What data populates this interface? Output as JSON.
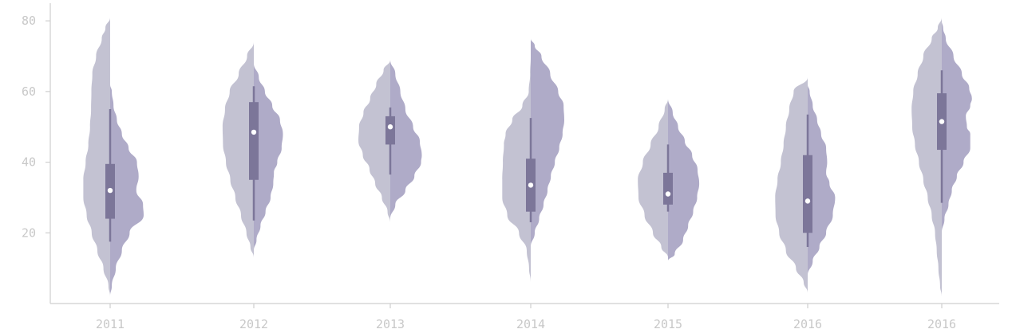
{
  "chart_data": {
    "type": "violin",
    "title": "",
    "xlabel": "",
    "ylabel": "",
    "ylim": [
      0,
      85
    ],
    "yticks": [
      20,
      40,
      60,
      80
    ],
    "grid": false,
    "categories": [
      "2011",
      "2012",
      "2013",
      "2014",
      "2015",
      "2016",
      "2016"
    ],
    "colors": {
      "left_half": "#c3c2d2",
      "right_half": "#afabc8",
      "box": "#7c7699",
      "median_dot": "#ffffff",
      "axis": "#cfcfcf",
      "tick_text": "#c8c8c8"
    },
    "violins": [
      {
        "category": "2011",
        "median": 32,
        "q1": 24,
        "q3": 39.5,
        "whisker_low": 17.5,
        "whisker_high": 55,
        "left_density": [
          [
            2,
            0
          ],
          [
            5,
            0.05
          ],
          [
            10,
            0.2
          ],
          [
            15,
            0.38
          ],
          [
            20,
            0.55
          ],
          [
            25,
            0.7
          ],
          [
            30,
            0.8
          ],
          [
            35,
            0.8
          ],
          [
            40,
            0.73
          ],
          [
            45,
            0.65
          ],
          [
            50,
            0.6
          ],
          [
            55,
            0.57
          ],
          [
            60,
            0.56
          ],
          [
            65,
            0.53
          ],
          [
            70,
            0.42
          ],
          [
            75,
            0.25
          ],
          [
            78,
            0.14
          ],
          [
            81,
            0
          ]
        ],
        "right_density": [
          [
            2,
            0
          ],
          [
            5,
            0.05
          ],
          [
            10,
            0.17
          ],
          [
            15,
            0.35
          ],
          [
            20,
            0.58
          ],
          [
            25,
            1.0
          ],
          [
            28,
            0.98
          ],
          [
            32,
            0.78
          ],
          [
            36,
            0.85
          ],
          [
            40,
            0.8
          ],
          [
            44,
            0.55
          ],
          [
            48,
            0.35
          ],
          [
            52,
            0.2
          ],
          [
            56,
            0.1
          ],
          [
            60,
            0.05
          ],
          [
            62,
            0
          ]
        ]
      },
      {
        "category": "2012",
        "median": 48.5,
        "q1": 35,
        "q3": 57,
        "whisker_low": 23.5,
        "whisker_high": 61.5,
        "left_density": [
          [
            13,
            0
          ],
          [
            16,
            0.1
          ],
          [
            20,
            0.22
          ],
          [
            25,
            0.38
          ],
          [
            30,
            0.55
          ],
          [
            35,
            0.7
          ],
          [
            40,
            0.83
          ],
          [
            45,
            0.92
          ],
          [
            50,
            0.93
          ],
          [
            55,
            0.86
          ],
          [
            60,
            0.72
          ],
          [
            65,
            0.45
          ],
          [
            70,
            0.2
          ],
          [
            74,
            0
          ]
        ],
        "right_density": [
          [
            15,
            0
          ],
          [
            18,
            0.08
          ],
          [
            22,
            0.2
          ],
          [
            26,
            0.35
          ],
          [
            30,
            0.5
          ],
          [
            34,
            0.58
          ],
          [
            37,
            0.6
          ],
          [
            40,
            0.7
          ],
          [
            44,
            0.83
          ],
          [
            48,
            0.87
          ],
          [
            52,
            0.78
          ],
          [
            56,
            0.55
          ],
          [
            60,
            0.33
          ],
          [
            64,
            0.15
          ],
          [
            68,
            0
          ]
        ]
      },
      {
        "category": "2013",
        "median": 50,
        "q1": 45,
        "q3": 53,
        "whisker_low": 36.5,
        "whisker_high": 55.5,
        "left_density": [
          [
            23,
            0
          ],
          [
            26,
            0.08
          ],
          [
            30,
            0.25
          ],
          [
            34,
            0.45
          ],
          [
            38,
            0.62
          ],
          [
            42,
            0.82
          ],
          [
            46,
            0.95
          ],
          [
            50,
            0.93
          ],
          [
            54,
            0.8
          ],
          [
            58,
            0.6
          ],
          [
            62,
            0.42
          ],
          [
            66,
            0.2
          ],
          [
            69,
            0
          ]
        ],
        "right_density": [
          [
            24,
            0
          ],
          [
            28,
            0.15
          ],
          [
            32,
            0.45
          ],
          [
            36,
            0.72
          ],
          [
            40,
            0.92
          ],
          [
            42,
            0.94
          ],
          [
            46,
            0.88
          ],
          [
            50,
            0.68
          ],
          [
            55,
            0.45
          ],
          [
            60,
            0.3
          ],
          [
            65,
            0.15
          ],
          [
            69,
            0
          ]
        ]
      },
      {
        "category": "2014",
        "median": 33.5,
        "q1": 26,
        "q3": 41,
        "whisker_low": 23,
        "whisker_high": 52.5,
        "left_density": [
          [
            6,
            0
          ],
          [
            10,
            0.05
          ],
          [
            15,
            0.12
          ],
          [
            20,
            0.35
          ],
          [
            25,
            0.7
          ],
          [
            30,
            0.85
          ],
          [
            35,
            0.85
          ],
          [
            40,
            0.83
          ],
          [
            45,
            0.8
          ],
          [
            48,
            0.75
          ],
          [
            52,
            0.55
          ],
          [
            56,
            0.25
          ],
          [
            60,
            0.06
          ],
          [
            65,
            0.02
          ],
          [
            70,
            0
          ]
        ],
        "right_density": [
          [
            16,
            0
          ],
          [
            20,
            0.12
          ],
          [
            24,
            0.25
          ],
          [
            28,
            0.38
          ],
          [
            32,
            0.5
          ],
          [
            36,
            0.6
          ],
          [
            40,
            0.72
          ],
          [
            44,
            0.85
          ],
          [
            48,
            0.95
          ],
          [
            52,
            1.0
          ],
          [
            56,
            0.98
          ],
          [
            60,
            0.82
          ],
          [
            65,
            0.58
          ],
          [
            70,
            0.32
          ],
          [
            73,
            0.12
          ],
          [
            75,
            0
          ]
        ]
      },
      {
        "category": "2015",
        "median": 31,
        "q1": 28,
        "q3": 37,
        "whisker_low": 26,
        "whisker_high": 45,
        "left_density": [
          [
            13,
            0
          ],
          [
            16,
            0.2
          ],
          [
            20,
            0.45
          ],
          [
            25,
            0.7
          ],
          [
            30,
            0.88
          ],
          [
            35,
            0.9
          ],
          [
            40,
            0.75
          ],
          [
            45,
            0.52
          ],
          [
            50,
            0.28
          ],
          [
            55,
            0.1
          ],
          [
            58,
            0
          ]
        ],
        "right_density": [
          [
            12,
            0
          ],
          [
            14,
            0.2
          ],
          [
            18,
            0.45
          ],
          [
            22,
            0.6
          ],
          [
            26,
            0.75
          ],
          [
            30,
            0.87
          ],
          [
            34,
            0.93
          ],
          [
            38,
            0.88
          ],
          [
            42,
            0.72
          ],
          [
            46,
            0.5
          ],
          [
            50,
            0.3
          ],
          [
            54,
            0.14
          ],
          [
            58,
            0
          ]
        ]
      },
      {
        "category": "2016",
        "median": 29,
        "q1": 20,
        "q3": 42,
        "whisker_low": 16,
        "whisker_high": 53.5,
        "left_density": [
          [
            3,
            0
          ],
          [
            6,
            0.12
          ],
          [
            10,
            0.35
          ],
          [
            15,
            0.65
          ],
          [
            20,
            0.85
          ],
          [
            25,
            0.96
          ],
          [
            30,
            0.97
          ],
          [
            35,
            0.9
          ],
          [
            40,
            0.8
          ],
          [
            45,
            0.72
          ],
          [
            50,
            0.65
          ],
          [
            55,
            0.55
          ],
          [
            60,
            0.42
          ],
          [
            64,
            0
          ]
        ],
        "right_density": [
          [
            8,
            0
          ],
          [
            12,
            0.15
          ],
          [
            16,
            0.35
          ],
          [
            20,
            0.55
          ],
          [
            25,
            0.75
          ],
          [
            30,
            0.82
          ],
          [
            34,
            0.65
          ],
          [
            37,
            0.55
          ],
          [
            40,
            0.58
          ],
          [
            44,
            0.55
          ],
          [
            48,
            0.4
          ],
          [
            52,
            0.28
          ],
          [
            56,
            0.15
          ],
          [
            60,
            0.06
          ],
          [
            62,
            0
          ]
        ]
      },
      {
        "category": "2016",
        "median": 51.5,
        "q1": 43.5,
        "q3": 59.5,
        "whisker_low": 28.5,
        "whisker_high": 66,
        "left_density": [
          [
            2,
            0
          ],
          [
            5,
            0.05
          ],
          [
            10,
            0.1
          ],
          [
            15,
            0.15
          ],
          [
            20,
            0.2
          ],
          [
            25,
            0.3
          ],
          [
            30,
            0.42
          ],
          [
            35,
            0.55
          ],
          [
            40,
            0.68
          ],
          [
            45,
            0.8
          ],
          [
            50,
            0.88
          ],
          [
            55,
            0.9
          ],
          [
            60,
            0.85
          ],
          [
            65,
            0.72
          ],
          [
            70,
            0.55
          ],
          [
            75,
            0.3
          ],
          [
            78,
            0.12
          ],
          [
            81,
            0
          ]
        ],
        "right_density": [
          [
            20,
            0
          ],
          [
            24,
            0.08
          ],
          [
            28,
            0.2
          ],
          [
            32,
            0.3
          ],
          [
            36,
            0.45
          ],
          [
            40,
            0.65
          ],
          [
            44,
            0.85
          ],
          [
            48,
            0.85
          ],
          [
            50,
            0.75
          ],
          [
            53,
            0.72
          ],
          [
            56,
            0.85
          ],
          [
            58,
            0.9
          ],
          [
            61,
            0.82
          ],
          [
            65,
            0.6
          ],
          [
            70,
            0.35
          ],
          [
            75,
            0.12
          ],
          [
            78,
            0.04
          ],
          [
            80,
            0
          ]
        ]
      }
    ]
  }
}
